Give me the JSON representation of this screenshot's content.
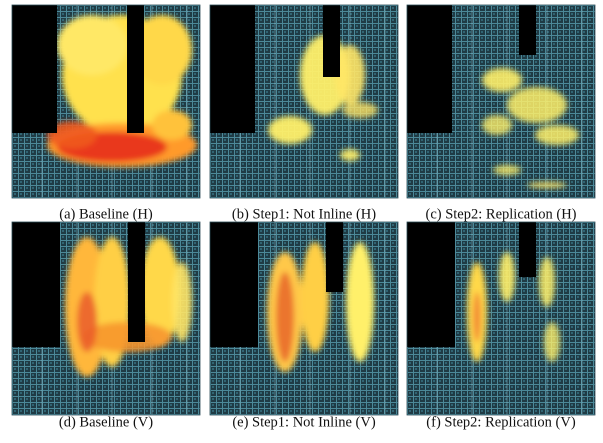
{
  "panels": [
    {
      "caption": "(a) Baseline (H)"
    },
    {
      "caption": "(b) Step1: Not Inline (H)"
    },
    {
      "caption": "(c) Step2: Replication (H)"
    },
    {
      "caption": "(d) Baseline (V)"
    },
    {
      "caption": "(e) Step1: Not Inline (V)"
    },
    {
      "caption": "(f) Step2: Replication (V)"
    }
  ]
}
